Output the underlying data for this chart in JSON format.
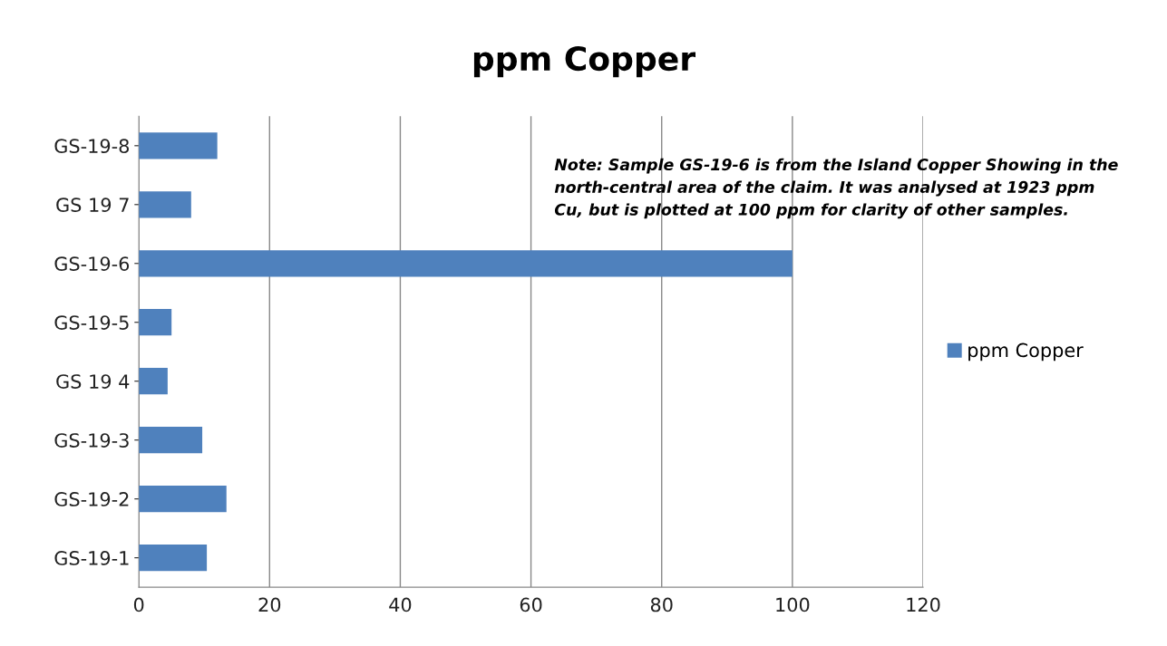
{
  "chart_data": {
    "type": "bar",
    "orientation": "horizontal",
    "title": "ppm Copper",
    "categories": [
      "GS-19-8",
      "GS 19 7",
      "GS-19-6",
      "GS-19-5",
      "GS 19 4",
      "GS-19-3",
      "GS-19-2",
      "GS-19-1"
    ],
    "series": [
      {
        "name": "ppm Copper",
        "color": "#4f81bd",
        "values": [
          12,
          8,
          100,
          5,
          4.4,
          9.7,
          13.4,
          10.4
        ]
      }
    ],
    "xlim": [
      0,
      120
    ],
    "xticks": [
      0,
      20,
      40,
      60,
      80,
      100,
      120
    ],
    "grid": "x",
    "legend": "right",
    "annotations": [
      "Note: Sample GS-19-6 is from the Island Copper Showing in the\nnorth-central area of the claim. It was analysed at 1923 ppm\nCu, but is plotted at 100 ppm for clarity of other samples."
    ]
  }
}
